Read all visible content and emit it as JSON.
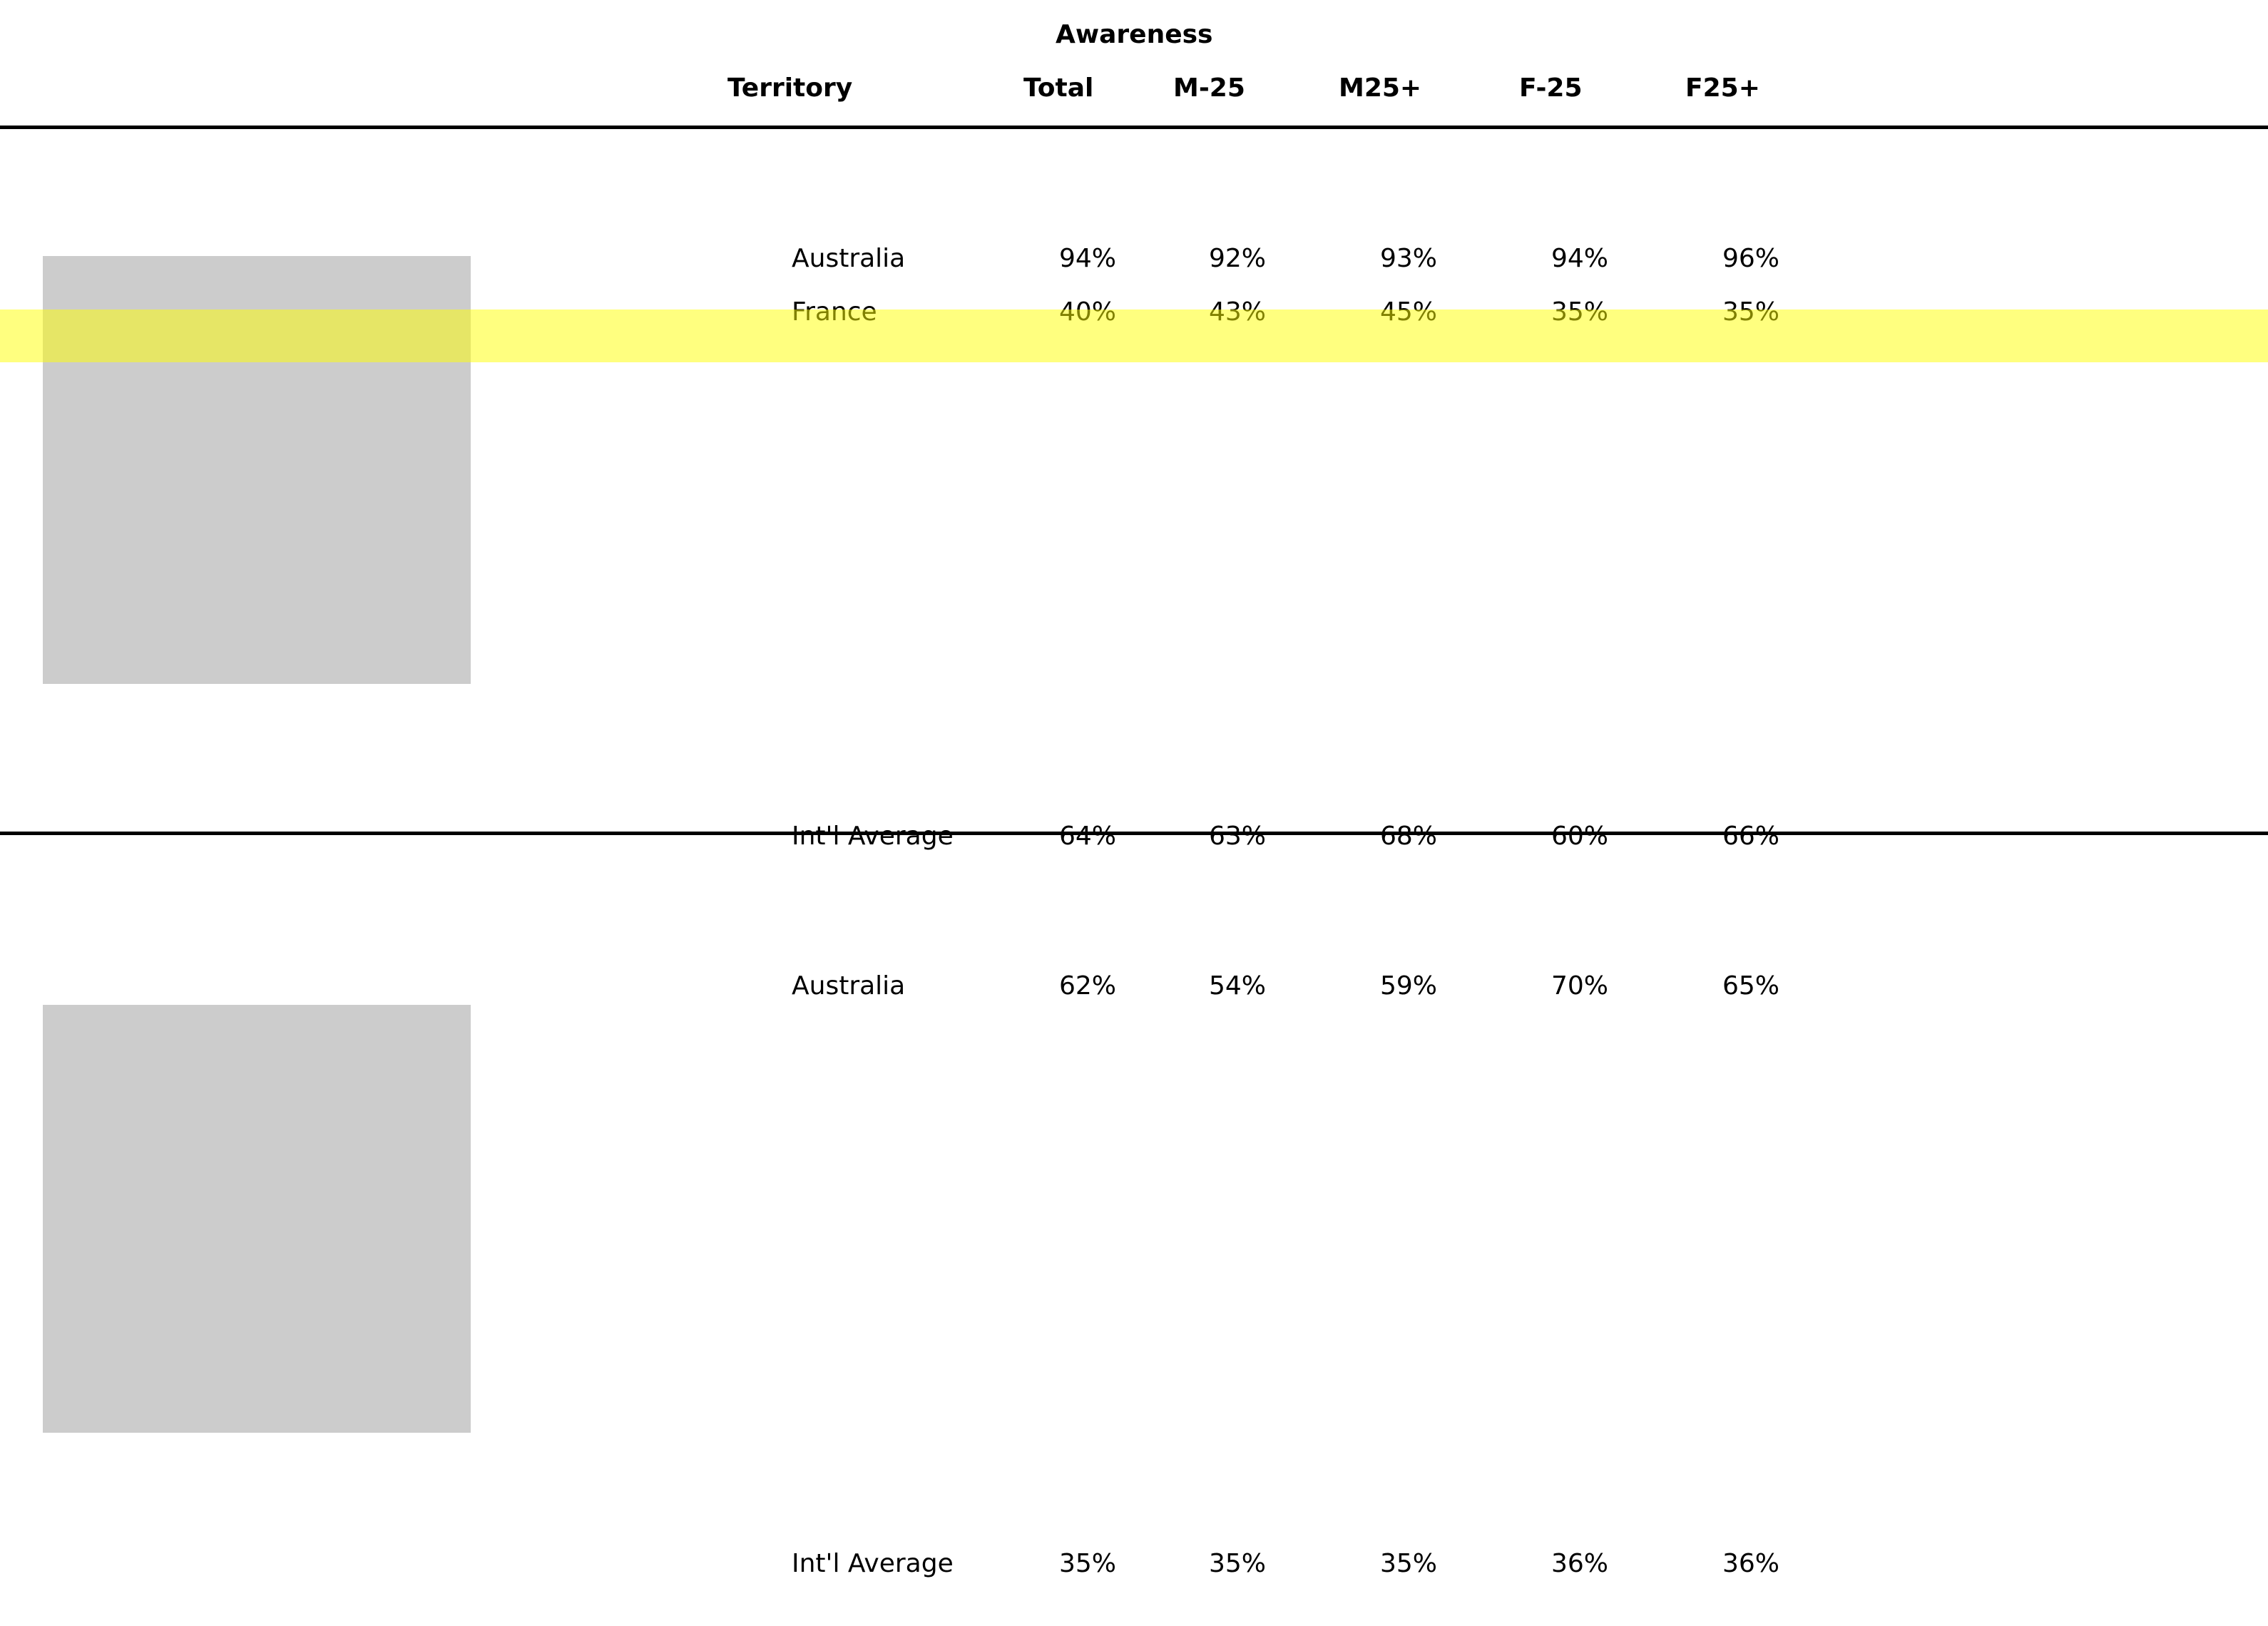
{
  "title": "Awareness",
  "columns": {
    "territory": "Territory",
    "total": "Total",
    "m_under25": "M-25",
    "m_25plus": "M25+",
    "f_under25": "F-25",
    "f_25plus": "F25+"
  },
  "colors": {
    "highlight": "#ffff00",
    "placeholder": "#cccccc",
    "rule": "#000000"
  },
  "sections": [
    {
      "rows": [
        {
          "territory": "Australia",
          "total": "94%",
          "m_under25": "92%",
          "m_25plus": "93%",
          "f_under25": "94%",
          "f_25plus": "96%"
        },
        {
          "territory": "France",
          "total": "40%",
          "m_under25": "43%",
          "m_25plus": "45%",
          "f_under25": "35%",
          "f_25plus": "35%",
          "highlighted": true
        }
      ],
      "average": {
        "territory": "Int'l Average",
        "total": "64%",
        "m_under25": "63%",
        "m_25plus": "68%",
        "f_under25": "60%",
        "f_25plus": "66%"
      }
    },
    {
      "rows": [
        {
          "territory": "Australia",
          "total": "62%",
          "m_under25": "54%",
          "m_25plus": "59%",
          "f_under25": "70%",
          "f_25plus": "65%"
        }
      ],
      "average": {
        "territory": "Int'l Average",
        "total": "35%",
        "m_under25": "35%",
        "m_25plus": "35%",
        "f_under25": "36%",
        "f_25plus": "36%"
      }
    }
  ]
}
